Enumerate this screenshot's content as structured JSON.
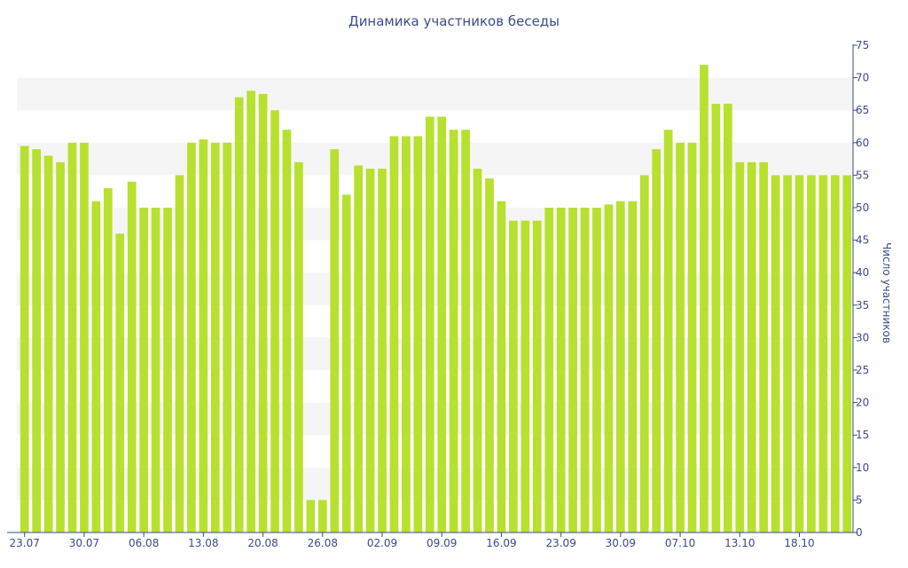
{
  "chart_data": {
    "type": "bar",
    "title": "Динамика участников беседы",
    "ylabel": "Число участников",
    "xlabel": "",
    "ylim": [
      0,
      75
    ],
    "y_axis_side": "right",
    "y_ticks": [
      0,
      5,
      10,
      15,
      20,
      25,
      30,
      35,
      40,
      45,
      50,
      55,
      60,
      65,
      70,
      75
    ],
    "x_tick_labels": [
      "23.07",
      "30.07",
      "06.08",
      "13.08",
      "20.08",
      "26.08",
      "02.09",
      "09.09",
      "16.09",
      "23.09",
      "30.09",
      "07.10",
      "13.10",
      "18.10"
    ],
    "x_tick_bar_index": [
      0,
      5,
      10,
      15,
      20,
      25,
      30,
      35,
      40,
      45,
      50,
      55,
      60,
      65
    ],
    "values": [
      59.5,
      59,
      58,
      57,
      60,
      60,
      51,
      53,
      46,
      54,
      50,
      50,
      50,
      55,
      60,
      60.5,
      60,
      60,
      67,
      68,
      67.5,
      65,
      62,
      57,
      5,
      5,
      59,
      52,
      56.5,
      56,
      56,
      61,
      61,
      61,
      64,
      64,
      62,
      62,
      56,
      54.5,
      51,
      48,
      48,
      48,
      50,
      50,
      50,
      50,
      50,
      50.5,
      51,
      51,
      55,
      59,
      62,
      60,
      60,
      72,
      66,
      66,
      57,
      57,
      57,
      55,
      55,
      55,
      55,
      55,
      55,
      55
    ],
    "bar_color": "#b8e02e",
    "band_color": "#f5f5f5",
    "axis_color": "#3b4a8a",
    "grid": false
  }
}
